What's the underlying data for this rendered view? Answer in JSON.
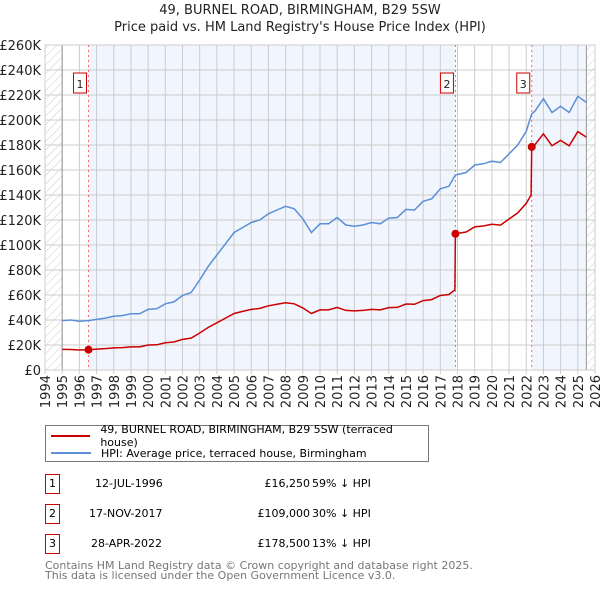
{
  "title": "49, BURNEL ROAD, BIRMINGHAM, B29 5SW",
  "subtitle": "Price paid vs. HM Land Registry's House Price Index (HPI)",
  "chart_data": {
    "type": "line",
    "xlim": [
      1994,
      2026
    ],
    "ylim": [
      0,
      260000
    ],
    "x_ticks": [
      "1994",
      "1995",
      "1996",
      "1997",
      "1998",
      "1999",
      "2000",
      "2001",
      "2002",
      "2003",
      "2004",
      "2005",
      "2006",
      "2007",
      "2008",
      "2009",
      "2010",
      "2011",
      "2012",
      "2013",
      "2014",
      "2015",
      "2016",
      "2017",
      "2018",
      "2019",
      "2020",
      "2021",
      "2022",
      "2023",
      "2024",
      "2025",
      "2026"
    ],
    "y_ticks": [
      {
        "v": 0,
        "l": "£0"
      },
      {
        "v": 20000,
        "l": "£20K"
      },
      {
        "v": 40000,
        "l": "£40K"
      },
      {
        "v": 60000,
        "l": "£60K"
      },
      {
        "v": 80000,
        "l": "£80K"
      },
      {
        "v": 100000,
        "l": "£100K"
      },
      {
        "v": 120000,
        "l": "£120K"
      },
      {
        "v": 140000,
        "l": "£140K"
      },
      {
        "v": 160000,
        "l": "£160K"
      },
      {
        "v": 180000,
        "l": "£180K"
      },
      {
        "v": 200000,
        "l": "£200K"
      },
      {
        "v": 220000,
        "l": "£220K"
      },
      {
        "v": 240000,
        "l": "£240K"
      },
      {
        "v": 260000,
        "l": "£260K"
      }
    ],
    "grid": true,
    "data_range": [
      1995,
      2025.5
    ],
    "series": [
      {
        "name": "49, BURNEL ROAD, BIRMINGHAM, B29 5SW (terraced house)",
        "color": "#cc0000",
        "x": [
          1995,
          1995.5,
          1996,
          1996.53,
          1997,
          1997.5,
          1998,
          1998.5,
          1999,
          1999.5,
          2000,
          2000.5,
          2001,
          2001.5,
          2002,
          2002.5,
          2003,
          2003.5,
          2004,
          2004.5,
          2005,
          2005.5,
          2006,
          2006.5,
          2007,
          2007.5,
          2008,
          2008.5,
          2009,
          2009.5,
          2010,
          2010.5,
          2011,
          2011.5,
          2012,
          2012.5,
          2013,
          2013.5,
          2014,
          2014.5,
          2015,
          2015.5,
          2016,
          2016.5,
          2017,
          2017.5,
          2017.85,
          2017.88,
          2018.5,
          2019,
          2019.5,
          2020,
          2020.5,
          2021,
          2021.5,
          2022,
          2022.28,
          2022.32,
          2022.5,
          2023,
          2023.5,
          2024,
          2024.5,
          2025,
          2025.3,
          2025.5
        ],
        "y": [
          16500,
          16400,
          16000,
          16250,
          16700,
          17100,
          17700,
          17900,
          18500,
          18500,
          20000,
          20200,
          21800,
          22400,
          24500,
          25500,
          29600,
          34100,
          37800,
          41500,
          45200,
          46900,
          48500,
          49300,
          51400,
          52600,
          53800,
          53000,
          49700,
          45200,
          48100,
          48100,
          50100,
          47700,
          47300,
          47700,
          48500,
          48100,
          49900,
          50100,
          52800,
          52600,
          55500,
          56300,
          59600,
          60400,
          64100,
          109000,
          110400,
          114500,
          115200,
          116600,
          115900,
          120800,
          125700,
          133400,
          140000,
          178500,
          180200,
          188900,
          179400,
          183700,
          179400,
          190700,
          188000,
          186300
        ]
      },
      {
        "name": "HPI: Average price, terraced house, Birmingham",
        "color": "#5b8fd6",
        "x": [
          1995,
          1995.5,
          1996,
          1996.53,
          1997,
          1997.5,
          1998,
          1998.5,
          1999,
          1999.5,
          2000,
          2000.5,
          2001,
          2001.5,
          2002,
          2002.5,
          2003,
          2003.5,
          2004,
          2004.5,
          2005,
          2005.5,
          2006,
          2006.5,
          2007,
          2007.5,
          2008,
          2008.5,
          2009,
          2009.5,
          2010,
          2010.5,
          2011,
          2011.5,
          2012,
          2012.5,
          2013,
          2013.5,
          2014,
          2014.5,
          2015,
          2015.5,
          2016,
          2016.5,
          2017,
          2017.5,
          2017.88,
          2018.5,
          2019,
          2019.5,
          2020,
          2020.5,
          2021,
          2021.5,
          2022,
          2022.32,
          2022.5,
          2023,
          2023.5,
          2024,
          2024.5,
          2025,
          2025.3,
          2025.5
        ],
        "y": [
          39500,
          40000,
          39000,
          39500,
          40500,
          41500,
          43000,
          43500,
          45000,
          45000,
          48500,
          49000,
          53000,
          54500,
          59500,
          62000,
          72000,
          83000,
          92000,
          101000,
          110000,
          114000,
          118000,
          120000,
          125000,
          128000,
          131000,
          129000,
          121000,
          110000,
          117000,
          117000,
          122000,
          116000,
          115000,
          116000,
          118000,
          117000,
          121500,
          122000,
          128500,
          128000,
          135000,
          137000,
          145000,
          147000,
          156000,
          158000,
          164000,
          165000,
          167000,
          166000,
          173000,
          180000,
          191000,
          205000,
          207000,
          217000,
          206000,
          211000,
          206000,
          219000,
          216000,
          214000
        ]
      }
    ],
    "sales": [
      {
        "label": "1",
        "x": 1996.53,
        "y": 16250
      },
      {
        "label": "2",
        "x": 2017.88,
        "y": 109000
      },
      {
        "label": "3",
        "x": 2022.32,
        "y": 178500
      }
    ]
  },
  "legend": {
    "items": [
      {
        "label": "49, BURNEL ROAD, BIRMINGHAM, B29 5SW (terraced house)",
        "color": "#cc0000"
      },
      {
        "label": "HPI: Average price, terraced house, Birmingham",
        "color": "#5b8fd6"
      }
    ]
  },
  "transactions": [
    {
      "num": "1",
      "date": "12-JUL-1996",
      "price": "£16,250",
      "hpi": "59% ↓ HPI"
    },
    {
      "num": "2",
      "date": "17-NOV-2017",
      "price": "£109,000",
      "hpi": "30% ↓ HPI"
    },
    {
      "num": "3",
      "date": "28-APR-2022",
      "price": "£178,500",
      "hpi": "13% ↓ HPI"
    }
  ],
  "footer": {
    "line1": "Contains HM Land Registry data © Crown copyright and database right 2025.",
    "line2": "This data is licensed under the Open Government Licence v3.0."
  }
}
